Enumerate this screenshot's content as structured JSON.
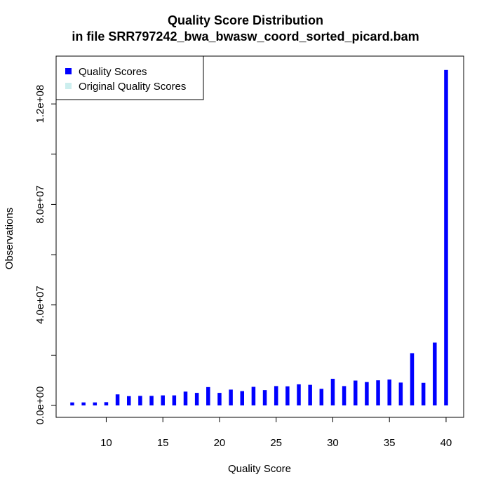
{
  "chart_data": {
    "type": "bar",
    "title": "Quality Score Distribution",
    "subtitle": "in file SRR797242_bwa_bwasw_coord_sorted_picard.bam",
    "xlabel": "Quality Score",
    "ylabel": "Observations",
    "xlim": [
      7,
      40
    ],
    "ylim": [
      0,
      134000000
    ],
    "x_ticks": [
      10,
      15,
      20,
      25,
      30,
      35,
      40
    ],
    "y_ticks": [
      0,
      40000000,
      80000000,
      120000000
    ],
    "y_tick_labels": [
      "0.0e+00",
      "4.0e+07",
      "8.0e+07",
      "1.2e+08"
    ],
    "legend": {
      "position": "top-left",
      "entries": [
        "Quality Scores",
        "Original Quality Scores"
      ]
    },
    "series": [
      {
        "name": "Quality Scores",
        "color": "#0000ff",
        "x": [
          7,
          8,
          9,
          10,
          11,
          12,
          13,
          14,
          15,
          16,
          17,
          18,
          19,
          20,
          21,
          22,
          23,
          24,
          25,
          26,
          27,
          28,
          29,
          30,
          31,
          32,
          33,
          34,
          35,
          36,
          37,
          38,
          39,
          40
        ],
        "values": [
          1200000,
          1200000,
          1200000,
          1300000,
          4400000,
          3700000,
          3800000,
          3800000,
          4000000,
          4000000,
          5500000,
          5000000,
          7300000,
          5000000,
          6300000,
          5700000,
          7400000,
          6100000,
          7700000,
          7600000,
          8400000,
          8200000,
          6600000,
          10600000,
          7700000,
          9900000,
          9300000,
          10000000,
          10300000,
          9100000,
          20800000,
          9000000,
          25000000,
          133500000
        ]
      },
      {
        "name": "Original Quality Scores",
        "color": "#cceeee",
        "x": [],
        "values": []
      }
    ]
  }
}
